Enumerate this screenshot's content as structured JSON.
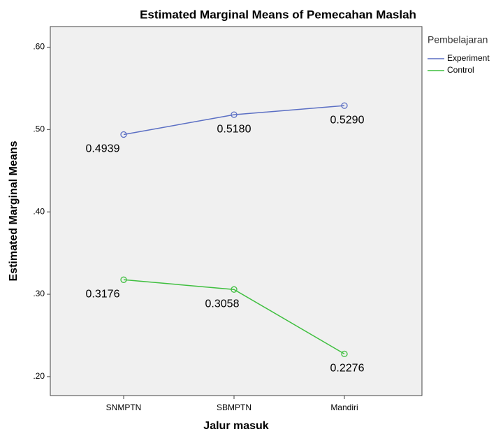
{
  "chart_data": {
    "type": "line",
    "title": "Estimated Marginal Means of Pemecahan Maslah",
    "x_label": "Jalur masuk",
    "y_label": "Estimated Marginal Means",
    "legend_title": "Pembelajaran",
    "legend_position": "right",
    "categories": [
      "SNMPTN",
      "SBMPTN",
      "Mandiri"
    ],
    "series": [
      {
        "name": "Experiment",
        "color": "#5b6fc4",
        "values": [
          0.4939,
          0.518,
          0.529
        ],
        "value_labels": [
          "0.4939",
          "0.5180",
          "0.5290"
        ]
      },
      {
        "name": "Control",
        "color": "#3fbf3f",
        "values": [
          0.3176,
          0.3058,
          0.2276
        ],
        "value_labels": [
          "0.3176",
          "0.3058",
          "0.2276"
        ]
      }
    ],
    "ylim": [
      0.177,
      0.625
    ],
    "yticks": [
      {
        "value": 0.2,
        "label": ".20"
      },
      {
        "value": 0.3,
        "label": ".30"
      },
      {
        "value": 0.4,
        "label": ".40"
      },
      {
        "value": 0.5,
        "label": ".50"
      },
      {
        "value": 0.6,
        "label": ".60"
      }
    ]
  }
}
